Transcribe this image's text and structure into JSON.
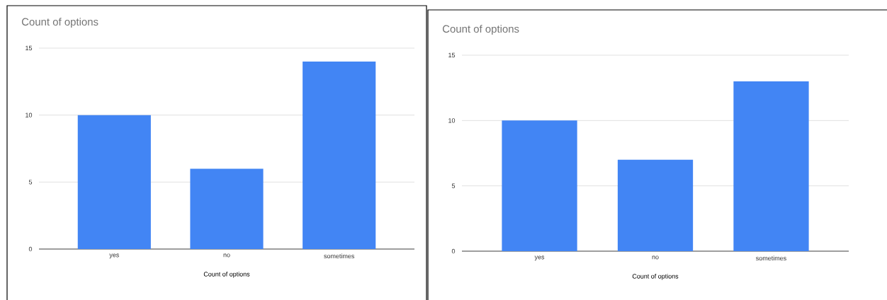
{
  "chart_data": [
    {
      "type": "bar",
      "title": "Count of options",
      "xlabel": "Count of options",
      "categories": [
        "yes",
        "no",
        "sometimes"
      ],
      "values": [
        10,
        6,
        14
      ],
      "color": "#4285f4",
      "ylim": [
        0,
        15
      ],
      "yticks": [
        0,
        5,
        10,
        15
      ],
      "grid": "y"
    },
    {
      "type": "bar",
      "title": "Count of options",
      "xlabel": "Count of options",
      "categories": [
        "yes",
        "no",
        "sometimes"
      ],
      "values": [
        10,
        7,
        13
      ],
      "color": "#4285f4",
      "ylim": [
        0,
        15
      ],
      "yticks": [
        0,
        5,
        10,
        15
      ],
      "grid": "y"
    }
  ]
}
